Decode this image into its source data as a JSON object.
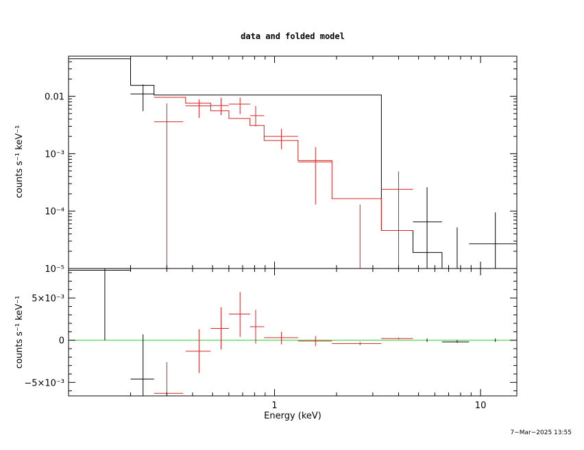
{
  "chart_data": {
    "type": "line",
    "title": "data and folded model",
    "xlabel": "Energy (keV)",
    "timestamp": "7−Mar−2025 13:55",
    "xscale": "log",
    "xlim": [
      0.1,
      15
    ],
    "panels": [
      {
        "id": "top",
        "ylabel": "counts s⁻¹ keV⁻¹",
        "yscale": "log",
        "ylim": [
          1e-05,
          0.05
        ],
        "y_tick_labels": [
          "0.01",
          "10⁻³",
          "10⁻⁴",
          "10⁻⁵"
        ],
        "series": [
          {
            "color": "#000000",
            "data_points": [
              {
                "x": 0.23,
                "xlo": 0.2,
                "xhi": 0.26,
                "y": 0.011,
                "ylo": 0.0055,
                "yhi": 0.016
              },
              {
                "x": 5.5,
                "xlo": 4.7,
                "xhi": 6.5,
                "y": 6.5e-05,
                "ylo": 1e-05,
                "yhi": 0.00026
              },
              {
                "x": 7.7,
                "xlo": 7.6,
                "xhi": 7.8,
                "y": 1e-05,
                "ylo": 1e-05,
                "yhi": 5.2e-05
              },
              {
                "x": 11.8,
                "xlo": 8.8,
                "xhi": 15,
                "y": 2.7e-05,
                "ylo": 1e-05,
                "yhi": 9.5e-05
              }
            ],
            "model_step": [
              {
                "xlo": 0.1,
                "xhi": 0.2,
                "y": 0.045
              },
              {
                "xlo": 0.2,
                "xhi": 0.26,
                "y": 0.0155
              },
              {
                "xlo": 0.26,
                "xhi": 3.3,
                "y": 0.0105
              },
              {
                "xlo": 3.3,
                "xhi": 4.7,
                "y": 4.6e-05
              },
              {
                "xlo": 4.7,
                "xhi": 6.5,
                "y": 1.9e-05
              },
              {
                "xlo": 6.5,
                "xhi": 7.6,
                "y": 1e-05
              }
            ]
          },
          {
            "color": "#d62020",
            "data_points": [
              {
                "x": 0.3,
                "xlo": 0.26,
                "xhi": 0.36,
                "y": 0.0036,
                "ylo": 1e-05,
                "yhi": 0.0075
              },
              {
                "x": 0.43,
                "xlo": 0.37,
                "xhi": 0.49,
                "y": 0.0068,
                "ylo": 0.0042,
                "yhi": 0.0088
              },
              {
                "x": 0.55,
                "xlo": 0.49,
                "xhi": 0.6,
                "y": 0.0069,
                "ylo": 0.0047,
                "yhi": 0.0094
              },
              {
                "x": 0.68,
                "xlo": 0.6,
                "xhi": 0.76,
                "y": 0.0073,
                "ylo": 0.0049,
                "yhi": 0.0095
              },
              {
                "x": 0.81,
                "xlo": 0.76,
                "xhi": 0.89,
                "y": 0.0046,
                "ylo": 0.003,
                "yhi": 0.0068
              },
              {
                "x": 1.08,
                "xlo": 0.89,
                "xhi": 1.3,
                "y": 0.002,
                "ylo": 0.0012,
                "yhi": 0.0027
              },
              {
                "x": 1.58,
                "xlo": 1.3,
                "xhi": 1.9,
                "y": 0.00072,
                "ylo": 0.00013,
                "yhi": 0.0013
              },
              {
                "x": 2.6,
                "xlo": 2.6,
                "xhi": 2.6,
                "y": 1e-05,
                "ylo": 1e-05,
                "yhi": 0.00013
              },
              {
                "x": 4.0,
                "xlo": 3.3,
                "xhi": 4.7,
                "y": 0.00024,
                "ylo": 1e-05,
                "yhi": 0.00049
              }
            ],
            "model_step": [
              {
                "xlo": 0.26,
                "xhi": 0.37,
                "y": 0.0096
              },
              {
                "xlo": 0.37,
                "xhi": 0.49,
                "y": 0.0076
              },
              {
                "xlo": 0.49,
                "xhi": 0.6,
                "y": 0.0056
              },
              {
                "xlo": 0.6,
                "xhi": 0.76,
                "y": 0.0041
              },
              {
                "xlo": 0.76,
                "xhi": 0.89,
                "y": 0.0031
              },
              {
                "xlo": 0.89,
                "xhi": 1.3,
                "y": 0.0017
              },
              {
                "xlo": 1.3,
                "xhi": 1.9,
                "y": 0.00076
              },
              {
                "xlo": 1.9,
                "xhi": 3.3,
                "y": 0.000165
              },
              {
                "xlo": 3.3,
                "xhi": 4.7,
                "y": 4.6e-05
              }
            ]
          }
        ]
      },
      {
        "id": "bottom",
        "ylabel": "counts s⁻¹ keV⁻¹",
        "yscale": "linear",
        "ylim": [
          -0.0066,
          0.0085
        ],
        "y_ticks": [
          -0.005,
          0,
          0.005
        ],
        "y_tick_labels": [
          "−5×10⁻³",
          "0",
          "5×10⁻³"
        ],
        "zero_line_color": "#22cc22",
        "series": [
          {
            "color": "#000000",
            "data_points": [
              {
                "x": 0.15,
                "xlo": 0.1,
                "xhi": 0.2,
                "y": 0.0083,
                "ylo": 0.0,
                "yhi": 0.0085
              },
              {
                "x": 0.23,
                "xlo": 0.2,
                "xhi": 0.26,
                "y": -0.0046,
                "ylo": -0.0066,
                "yhi": 0.0007
              },
              {
                "x": 5.5,
                "xlo": 5.5,
                "xhi": 5.5,
                "y": 0.0,
                "ylo": -0.0002,
                "yhi": 0.0002
              },
              {
                "x": 7.7,
                "xlo": 6.5,
                "xhi": 8.8,
                "y": -0.0002,
                "ylo": -0.0003,
                "yhi": 0.0
              },
              {
                "x": 11.8,
                "xlo": 11.8,
                "xhi": 11.8,
                "y": 0.0,
                "ylo": -0.0002,
                "yhi": 0.0002
              }
            ]
          },
          {
            "color": "#d62020",
            "data_points": [
              {
                "x": 0.3,
                "xlo": 0.26,
                "xhi": 0.36,
                "y": -0.0063,
                "ylo": -0.0066,
                "yhi": -0.0026
              },
              {
                "x": 0.43,
                "xlo": 0.37,
                "xhi": 0.49,
                "y": -0.0013,
                "ylo": -0.0039,
                "yhi": 0.0013
              },
              {
                "x": 0.55,
                "xlo": 0.49,
                "xhi": 0.6,
                "y": 0.0014,
                "ylo": -0.0011,
                "yhi": 0.0039
              },
              {
                "x": 0.68,
                "xlo": 0.6,
                "xhi": 0.76,
                "y": 0.0031,
                "ylo": 0.0004,
                "yhi": 0.0057
              },
              {
                "x": 0.81,
                "xlo": 0.76,
                "xhi": 0.89,
                "y": 0.0016,
                "ylo": -0.0004,
                "yhi": 0.0036
              },
              {
                "x": 1.08,
                "xlo": 0.89,
                "xhi": 1.3,
                "y": 0.0003,
                "ylo": -0.0005,
                "yhi": 0.001
              },
              {
                "x": 1.58,
                "xlo": 1.3,
                "xhi": 1.9,
                "y": -0.0001,
                "ylo": -0.0007,
                "yhi": 0.0005
              },
              {
                "x": 2.6,
                "xlo": 1.9,
                "xhi": 3.3,
                "y": -0.0004,
                "ylo": -0.0006,
                "yhi": -0.0002
              },
              {
                "x": 4.0,
                "xlo": 3.3,
                "xhi": 4.7,
                "y": 0.0002,
                "ylo": 0.0001,
                "yhi": 0.0003
              }
            ]
          }
        ]
      }
    ],
    "x_tick_labels": [
      {
        "value": 1,
        "label": "1"
      },
      {
        "value": 10,
        "label": "10"
      }
    ]
  }
}
